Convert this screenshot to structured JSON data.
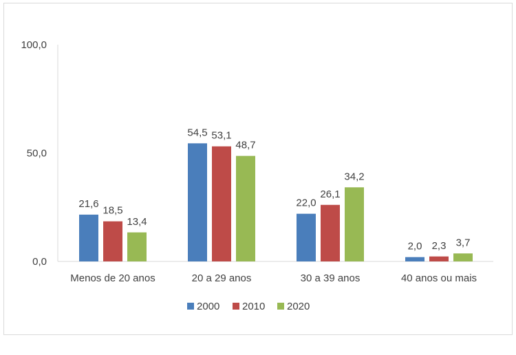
{
  "chart_data": {
    "type": "bar",
    "title": "",
    "xlabel": "",
    "ylabel": "",
    "categories": [
      "Menos de 20 anos",
      "20 a 29 anos",
      "30 a 39 anos",
      "40 anos ou mais"
    ],
    "series": [
      {
        "name": "2000",
        "color": "#4a7ebb",
        "values": [
          21.6,
          54.5,
          22.0,
          2.0
        ],
        "labels": [
          "21,6",
          "54,5",
          "22,0",
          "2,0"
        ]
      },
      {
        "name": "2010",
        "color": "#be4b48",
        "values": [
          18.5,
          53.1,
          26.1,
          2.3
        ],
        "labels": [
          "18,5",
          "53,1",
          "26,1",
          "2,3"
        ]
      },
      {
        "name": "2020",
        "color": "#98b954",
        "values": [
          13.4,
          48.7,
          34.2,
          3.7
        ],
        "labels": [
          "13,4",
          "48,7",
          "34,2",
          "3,7"
        ]
      }
    ],
    "ylim": [
      0,
      100
    ],
    "yticks": [
      0,
      50,
      100
    ],
    "ytick_labels": [
      "0,0",
      "50,0",
      "100,0"
    ],
    "grid": false,
    "legend_position": "bottom"
  }
}
